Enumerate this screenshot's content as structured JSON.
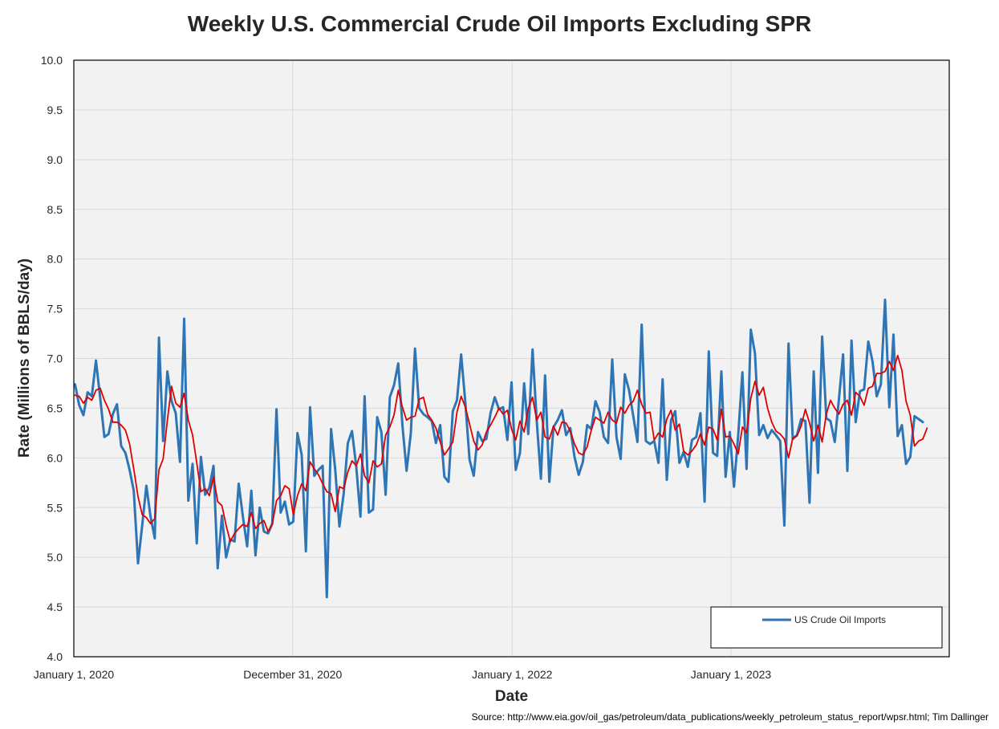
{
  "chart_data": {
    "type": "line",
    "title": "Weekly U.S. Commercial Crude Oil Imports Excluding SPR",
    "xlabel": "Date",
    "ylabel": "Rate (Millions of BBLS/day)",
    "source": "Source: http://www.eia.gov/oil_gas/petroleum/data_publications/weekly_petroleum_status_report/wpsr.html; Tim Dallinger",
    "ylim": [
      4.0,
      10.0
    ],
    "yticks": [
      "4.0",
      "4.5",
      "5.0",
      "5.5",
      "6.0",
      "6.5",
      "7.0",
      "7.5",
      "8.0",
      "8.5",
      "9.0",
      "9.5",
      "10.0"
    ],
    "xlim": [
      "2020-01-01",
      "2023-12-31"
    ],
    "xticks": [
      {
        "date": "2020-01-01",
        "label": "January 1, 2020"
      },
      {
        "date": "2020-12-31",
        "label": "December 31, 2020"
      },
      {
        "date": "2022-01-01",
        "label": "January 1, 2022"
      },
      {
        "date": "2023-01-01",
        "label": "January 1, 2023"
      }
    ],
    "grid": true,
    "legend": {
      "position": "bottom-right",
      "entries": [
        "US Crude Oil Imports"
      ]
    },
    "colors": {
      "series": "#2E75B6",
      "moving_average": "#E00000",
      "plot_background": "#F2F2F2",
      "gridline": "#D9D9D9"
    },
    "series": [
      {
        "name": "US Crude Oil Imports",
        "start_date": "2020-01-03",
        "interval_days": 7,
        "values": [
          6.74,
          6.53,
          6.43,
          6.66,
          6.62,
          6.98,
          6.6,
          6.21,
          6.24,
          6.44,
          6.54,
          6.12,
          6.05,
          5.88,
          5.67,
          4.94,
          5.32,
          5.72,
          5.41,
          5.19,
          7.21,
          6.17,
          6.87,
          6.57,
          6.45,
          5.96,
          7.4,
          5.57,
          5.94,
          5.14,
          6.01,
          5.63,
          5.7,
          5.92,
          4.89,
          5.42,
          5.0,
          5.18,
          5.16,
          5.74,
          5.41,
          5.11,
          5.67,
          5.02,
          5.5,
          5.26,
          5.24,
          5.34,
          6.49,
          5.45,
          5.56,
          5.33,
          5.36,
          6.25,
          6.03,
          5.06,
          6.51,
          5.82,
          5.88,
          5.92,
          4.6,
          6.29,
          5.88,
          5.31,
          5.64,
          6.15,
          6.27,
          5.91,
          5.41,
          6.62,
          5.45,
          5.48,
          6.41,
          6.26,
          5.63,
          6.61,
          6.73,
          6.95,
          6.33,
          5.87,
          6.25,
          7.1,
          6.5,
          6.44,
          6.41,
          6.37,
          6.15,
          6.33,
          5.81,
          5.76,
          6.47,
          6.58,
          7.04,
          6.55,
          5.98,
          5.82,
          6.26,
          6.17,
          6.19,
          6.45,
          6.61,
          6.49,
          6.51,
          6.18,
          6.76,
          5.88,
          6.05,
          6.75,
          6.24,
          7.09,
          6.37,
          5.79,
          6.83,
          5.76,
          6.31,
          6.38,
          6.48,
          6.23,
          6.3,
          6.01,
          5.83,
          5.96,
          6.33,
          6.29,
          6.57,
          6.46,
          6.21,
          6.15,
          6.99,
          6.21,
          5.99,
          6.84,
          6.68,
          6.42,
          6.16,
          7.34,
          6.17,
          6.14,
          6.17,
          5.95,
          6.79,
          5.78,
          6.38,
          6.47,
          5.95,
          6.06,
          5.91,
          6.18,
          6.21,
          6.45,
          5.56,
          7.07,
          6.05,
          6.02,
          6.87,
          5.81,
          6.26,
          5.71,
          6.23,
          6.86,
          5.89,
          7.29,
          7.05,
          6.23,
          6.33,
          6.2,
          6.28,
          6.23,
          6.17,
          5.32,
          7.15,
          6.19,
          6.23,
          6.39,
          6.37,
          5.55,
          6.87,
          5.85,
          7.22,
          6.4,
          6.37,
          6.16,
          6.59,
          7.04,
          5.87,
          7.18,
          6.36,
          6.67,
          6.69,
          7.17,
          6.97,
          6.62,
          6.74,
          7.59,
          6.51,
          7.24,
          6.22,
          6.33,
          5.94,
          6.01,
          6.42,
          6.39,
          6.36
        ]
      },
      {
        "name": "",
        "start_date": "2020-01-03",
        "interval_days": 7,
        "values": [
          6.63,
          6.62,
          6.55,
          6.61,
          6.58,
          6.68,
          6.7,
          6.58,
          6.49,
          6.36,
          6.36,
          6.33,
          6.28,
          6.14,
          5.89,
          5.61,
          5.43,
          5.4,
          5.34,
          5.39,
          5.88,
          5.99,
          6.38,
          6.72,
          6.55,
          6.51,
          6.65,
          6.38,
          6.23,
          5.95,
          5.66,
          5.69,
          5.62,
          5.81,
          5.56,
          5.52,
          5.32,
          5.16,
          5.24,
          5.29,
          5.33,
          5.31,
          5.45,
          5.29,
          5.34,
          5.37,
          5.26,
          5.33,
          5.57,
          5.62,
          5.72,
          5.69,
          5.43,
          5.62,
          5.74,
          5.67,
          5.96,
          5.89,
          5.83,
          5.74,
          5.66,
          5.64,
          5.46,
          5.71,
          5.69,
          5.86,
          5.97,
          5.92,
          6.04,
          5.82,
          5.75,
          5.97,
          5.91,
          5.94,
          6.23,
          6.31,
          6.43,
          6.68,
          6.51,
          6.38,
          6.41,
          6.42,
          6.59,
          6.61,
          6.44,
          6.38,
          6.3,
          6.16,
          6.03,
          6.09,
          6.16,
          6.46,
          6.62,
          6.51,
          6.34,
          6.17,
          6.08,
          6.13,
          6.26,
          6.33,
          6.41,
          6.5,
          6.44,
          6.48,
          6.29,
          6.18,
          6.37,
          6.26,
          6.5,
          6.61,
          6.38,
          6.46,
          6.21,
          6.19,
          6.32,
          6.23,
          6.36,
          6.35,
          6.27,
          6.14,
          6.05,
          6.03,
          6.11,
          6.28,
          6.41,
          6.38,
          6.35,
          6.46,
          6.38,
          6.35,
          6.51,
          6.45,
          6.53,
          6.57,
          6.68,
          6.54,
          6.45,
          6.46,
          6.18,
          6.25,
          6.21,
          6.39,
          6.48,
          6.28,
          6.34,
          6.07,
          6.03,
          6.07,
          6.13,
          6.24,
          6.13,
          6.31,
          6.29,
          6.18,
          6.49,
          6.21,
          6.22,
          6.14,
          6.04,
          6.31,
          6.25,
          6.6,
          6.77,
          6.63,
          6.71,
          6.5,
          6.36,
          6.27,
          6.24,
          6.19,
          6.0,
          6.2,
          6.22,
          6.32,
          6.49,
          6.35,
          6.17,
          6.33,
          6.16,
          6.44,
          6.58,
          6.5,
          6.44,
          6.54,
          6.58,
          6.43,
          6.66,
          6.62,
          6.53,
          6.7,
          6.72,
          6.85,
          6.85,
          6.87,
          6.97,
          6.88,
          7.03,
          6.88,
          6.57,
          6.43,
          6.12,
          6.17,
          6.19,
          6.3
        ]
      }
    ]
  }
}
